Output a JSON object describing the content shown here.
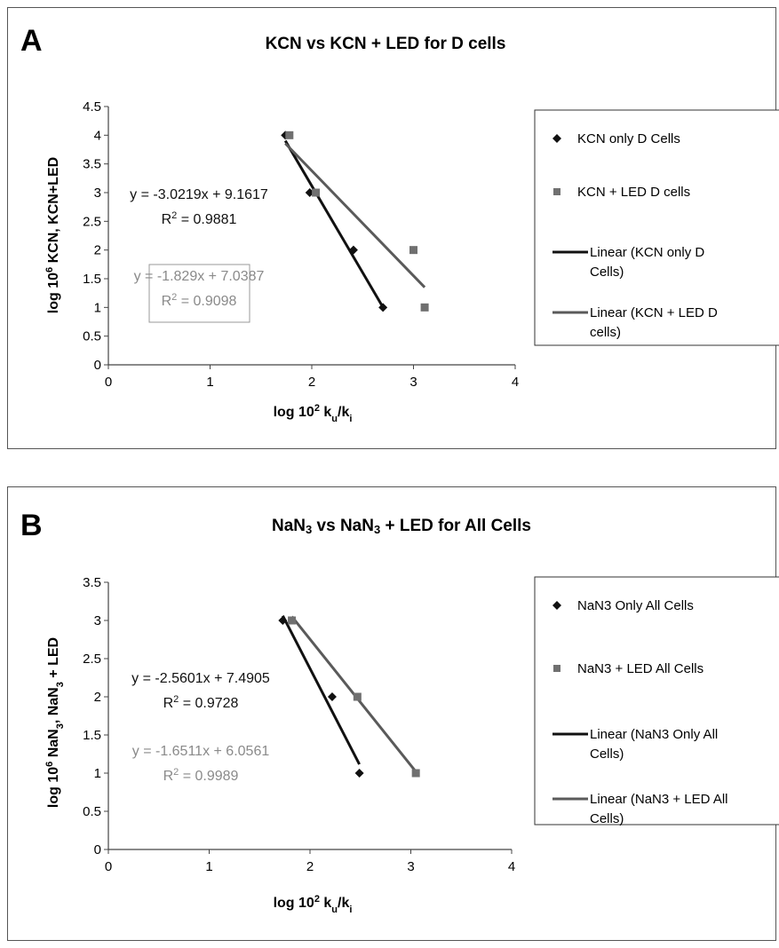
{
  "chart_data": [
    {
      "type": "scatter",
      "panel_letter": "A",
      "title_parts": [
        "KCN vs KCN + LED for D cells"
      ],
      "xlabel": {
        "main": "log 10",
        "sup": "2",
        "rest": " k",
        "sub1": "u",
        "slash": "/k",
        "sub2": "i"
      },
      "ylabel": {
        "main": "log 10",
        "sup": "6",
        "rest": " KCN, KCN+LED"
      },
      "xlim": [
        0,
        4
      ],
      "ylim": [
        0,
        4.5
      ],
      "x_ticks": [
        "0",
        "1",
        "2",
        "3",
        "4"
      ],
      "y_ticks": [
        "0",
        "0.5",
        "1",
        "1.5",
        "2",
        "2.5",
        "3",
        "3.5",
        "4",
        "4.5"
      ],
      "y_tick_values": [
        0,
        0.5,
        1,
        1.5,
        2,
        2.5,
        3,
        3.5,
        4,
        4.5
      ],
      "series": [
        {
          "name": "KCN only D Cells",
          "marker": "diamond",
          "color": "#111111",
          "x": [
            1.74,
            1.98,
            2.41,
            2.7
          ],
          "y": [
            4,
            3,
            2,
            1
          ]
        },
        {
          "name": "KCN + LED D cells",
          "marker": "square",
          "color": "#707070",
          "x": [
            1.78,
            2.04,
            3.0,
            3.11
          ],
          "y": [
            4,
            3,
            2,
            1
          ]
        }
      ],
      "trendlines": [
        {
          "name_line1": "Linear (KCN only D",
          "name_line2": "Cells)",
          "color": "#111111",
          "slope": -3.0219,
          "intercept": 9.1617,
          "x_range": [
            1.74,
            2.7
          ],
          "equation": "y = -3.0219x + 9.1617",
          "r2_label": "R",
          "r2_sup": "2",
          "r2_value": " = 0.9881"
        },
        {
          "name_line1": "Linear (KCN + LED D",
          "name_line2": "cells)",
          "color": "#5a5a5a",
          "slope": -1.829,
          "intercept": 7.0387,
          "x_range": [
            1.74,
            3.11
          ],
          "equation": "y = -1.829x + 7.0387",
          "r2_label": "R",
          "r2_sup": "2",
          "r2_value": " = 0.9098"
        }
      ],
      "legend_placement": "right",
      "grid": false
    },
    {
      "type": "scatter",
      "panel_letter": "B",
      "title_parts": [
        "NaN",
        "3",
        " vs NaN",
        "3",
        " + LED for All Cells"
      ],
      "xlabel": {
        "main": "log 10",
        "sup": "2",
        "rest": " k",
        "sub1": "u",
        "slash": "/k",
        "sub2": "i"
      },
      "ylabel": {
        "main": "log 10",
        "sup": "6",
        "rest": " NaN",
        "sub": "3",
        "rest2": ", NaN",
        "sub2": "3",
        "rest3": " + LED"
      },
      "xlim": [
        0,
        4
      ],
      "ylim": [
        0,
        3.5
      ],
      "x_ticks": [
        "0",
        "1",
        "2",
        "3",
        "4"
      ],
      "y_ticks": [
        "0",
        "0.5",
        "1",
        "1.5",
        "2",
        "2.5",
        "3",
        "3.5"
      ],
      "y_tick_values": [
        0,
        0.5,
        1,
        1.5,
        2,
        2.5,
        3,
        3.5
      ],
      "series": [
        {
          "name": "NaN3 Only All Cells",
          "marker": "diamond",
          "color": "#111111",
          "x": [
            1.73,
            2.22,
            2.49
          ],
          "y": [
            3,
            2,
            1
          ]
        },
        {
          "name": "NaN3 + LED All Cells",
          "marker": "square",
          "color": "#707070",
          "x": [
            1.82,
            2.47,
            3.05
          ],
          "y": [
            3,
            2,
            1
          ]
        }
      ],
      "trendlines": [
        {
          "name_line1": "Linear (NaN3 Only All",
          "name_line2": "Cells)",
          "color": "#111111",
          "slope": -2.5601,
          "intercept": 7.4905,
          "x_range": [
            1.73,
            2.49
          ],
          "equation": "y = -2.5601x + 7.4905",
          "r2_label": "R",
          "r2_sup": "2",
          "r2_value": " = 0.9728"
        },
        {
          "name_line1": "Linear (NaN3 + LED All",
          "name_line2": "Cells)",
          "color": "#5a5a5a",
          "slope": -1.6511,
          "intercept": 6.0561,
          "x_range": [
            1.82,
            3.05
          ],
          "equation": "y = -1.6511x + 6.0561",
          "r2_label": "R",
          "r2_sup": "2",
          "r2_value": " = 0.9989"
        }
      ],
      "legend_placement": "right",
      "grid": false
    }
  ]
}
